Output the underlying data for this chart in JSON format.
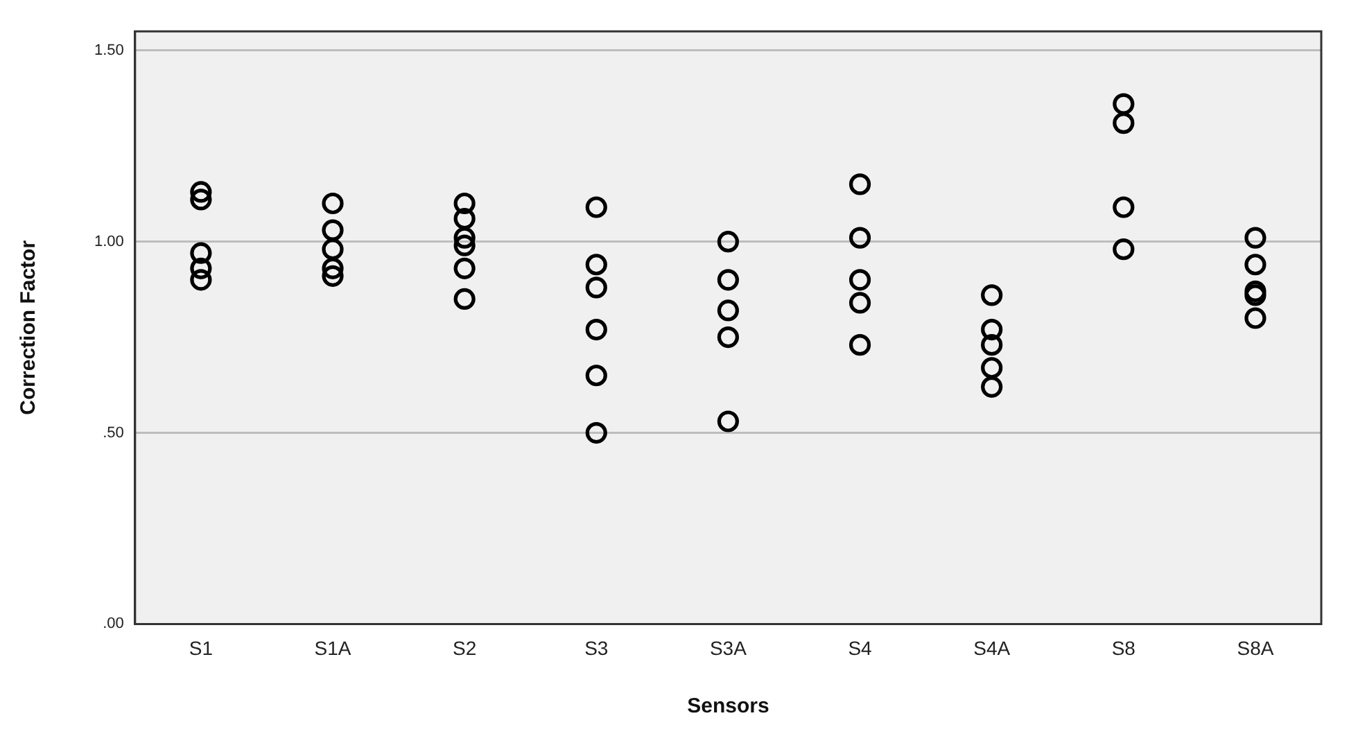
{
  "chart_data": {
    "type": "scatter",
    "xlabel": "Sensors",
    "ylabel": "Correction Factor",
    "categories": [
      "S1",
      "S1A",
      "S2",
      "S3",
      "S3A",
      "S4",
      "S4A",
      "S8",
      "S8A"
    ],
    "series": [
      {
        "color": "#000000",
        "x": [
          "S1",
          "S1",
          "S1",
          "S1",
          "S1",
          "S1A",
          "S1A",
          "S1A",
          "S1A",
          "S1A",
          "S2",
          "S2",
          "S2",
          "S2",
          "S2",
          "S2",
          "S3",
          "S3",
          "S3",
          "S3",
          "S3",
          "S3",
          "S3A",
          "S3A",
          "S3A",
          "S3A",
          "S3A",
          "S4",
          "S4",
          "S4",
          "S4",
          "S4",
          "S4A",
          "S4A",
          "S4A",
          "S4A",
          "S4A",
          "S8",
          "S8",
          "S8",
          "S8",
          "S8A",
          "S8A",
          "S8A",
          "S8A",
          "S8A"
        ],
        "values": [
          1.13,
          1.11,
          0.97,
          0.93,
          0.9,
          1.1,
          1.03,
          0.98,
          0.93,
          0.91,
          1.1,
          1.06,
          1.01,
          0.99,
          0.93,
          0.85,
          1.09,
          0.94,
          0.88,
          0.77,
          0.65,
          0.5,
          1.0,
          0.9,
          0.82,
          0.75,
          0.53,
          1.15,
          1.01,
          0.9,
          0.84,
          0.73,
          0.86,
          0.77,
          0.73,
          0.67,
          0.62,
          1.36,
          1.31,
          1.09,
          0.98,
          1.01,
          0.94,
          0.87,
          0.86,
          0.8
        ]
      }
    ],
    "ylim": [
      0,
      1.55
    ],
    "yticks": [
      {
        "value": 0,
        "label": ".00"
      },
      {
        "value": 0.5,
        "label": ".50"
      },
      {
        "value": 1,
        "label": "1.00"
      },
      {
        "value": 1.5,
        "label": "1.50"
      }
    ],
    "grid": "y",
    "marker": "circle",
    "legend": false
  }
}
